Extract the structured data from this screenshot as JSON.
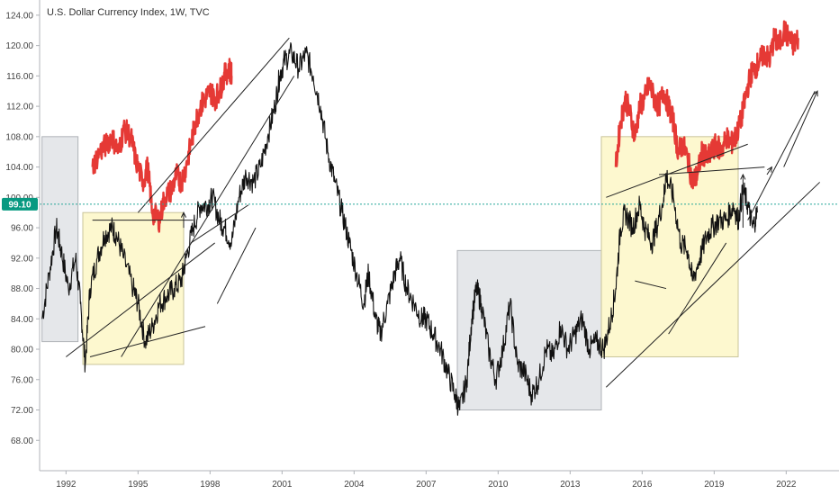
{
  "chart_data": {
    "type": "line",
    "title": "U.S. Dollar Currency Index, 1W, TVC",
    "xlabel": "",
    "ylabel": "",
    "ylim": [
      64,
      126
    ],
    "xlim": [
      1990.9,
      2024.2
    ],
    "yticks": [
      "124.00",
      "120.00",
      "116.00",
      "112.00",
      "108.00",
      "104.00",
      "100.00",
      "96.00",
      "92.00",
      "88.00",
      "84.00",
      "80.00",
      "76.00",
      "72.00",
      "68.00"
    ],
    "ytick_values": [
      124,
      120,
      116,
      112,
      108,
      104,
      100,
      96,
      92,
      88,
      84,
      80,
      76,
      72,
      68
    ],
    "xticks": [
      "1992",
      "1995",
      "1998",
      "2001",
      "2004",
      "2007",
      "2010",
      "2013",
      "2016",
      "2019",
      "2022"
    ],
    "xtick_values": [
      1992,
      1995,
      1998,
      2001,
      2004,
      2007,
      2010,
      2013,
      2016,
      2019,
      2022
    ],
    "current_price": {
      "label": "99.10",
      "value": 99.1,
      "color": "#089981"
    },
    "series": [
      {
        "color": "#111111",
        "anchors": [
          [
            1991.0,
            84
          ],
          [
            1991.3,
            90
          ],
          [
            1991.6,
            96
          ],
          [
            1991.8,
            93
          ],
          [
            1992.1,
            88
          ],
          [
            1992.4,
            92
          ],
          [
            1992.6,
            86
          ],
          [
            1992.8,
            78
          ],
          [
            1993.0,
            88
          ],
          [
            1993.3,
            92
          ],
          [
            1993.6,
            95
          ],
          [
            1993.9,
            96
          ],
          [
            1994.1,
            95
          ],
          [
            1994.4,
            92
          ],
          [
            1994.8,
            88
          ],
          [
            1995.0,
            86
          ],
          [
            1995.3,
            81
          ],
          [
            1995.6,
            83
          ],
          [
            1995.9,
            86
          ],
          [
            1996.2,
            87
          ],
          [
            1996.5,
            88
          ],
          [
            1996.8,
            89
          ],
          [
            1997.0,
            92
          ],
          [
            1997.3,
            96
          ],
          [
            1997.6,
            99
          ],
          [
            1997.9,
            99
          ],
          [
            1998.1,
            100
          ],
          [
            1998.4,
            97
          ],
          [
            1998.6,
            96
          ],
          [
            1998.9,
            94
          ],
          [
            1999.2,
            100
          ],
          [
            1999.5,
            103
          ],
          [
            1999.8,
            102
          ],
          [
            2000.1,
            104
          ],
          [
            2000.4,
            108
          ],
          [
            2000.7,
            112
          ],
          [
            2000.9,
            116
          ],
          [
            2001.1,
            118
          ],
          [
            2001.4,
            119
          ],
          [
            2001.7,
            117
          ],
          [
            2002.0,
            119
          ],
          [
            2002.3,
            116
          ],
          [
            2002.6,
            112
          ],
          [
            2002.9,
            106
          ],
          [
            2003.2,
            102
          ],
          [
            2003.5,
            98
          ],
          [
            2003.8,
            94
          ],
          [
            2004.1,
            90
          ],
          [
            2004.4,
            86
          ],
          [
            2004.6,
            90
          ],
          [
            2004.9,
            84
          ],
          [
            2005.1,
            82
          ],
          [
            2005.4,
            86
          ],
          [
            2005.7,
            90
          ],
          [
            2005.9,
            92
          ],
          [
            2006.2,
            88
          ],
          [
            2006.5,
            86
          ],
          [
            2006.8,
            84
          ],
          [
            2007.0,
            84
          ],
          [
            2007.3,
            82
          ],
          [
            2007.6,
            80
          ],
          [
            2007.9,
            77
          ],
          [
            2008.2,
            74
          ],
          [
            2008.4,
            72
          ],
          [
            2008.7,
            76
          ],
          [
            2008.9,
            84
          ],
          [
            2009.1,
            88
          ],
          [
            2009.3,
            86
          ],
          [
            2009.6,
            80
          ],
          [
            2009.9,
            76
          ],
          [
            2010.2,
            80
          ],
          [
            2010.5,
            86
          ],
          [
            2010.8,
            78
          ],
          [
            2011.1,
            77
          ],
          [
            2011.4,
            74
          ],
          [
            2011.7,
            76
          ],
          [
            2012.0,
            80
          ],
          [
            2012.3,
            79
          ],
          [
            2012.6,
            83
          ],
          [
            2012.9,
            80
          ],
          [
            2013.2,
            82
          ],
          [
            2013.5,
            84
          ],
          [
            2013.8,
            80
          ],
          [
            2014.1,
            81
          ],
          [
            2014.4,
            80
          ],
          [
            2014.7,
            84
          ],
          [
            2014.9,
            88
          ],
          [
            2015.1,
            96
          ],
          [
            2015.3,
            98
          ],
          [
            2015.6,
            96
          ],
          [
            2015.9,
            99
          ],
          [
            2016.1,
            96
          ],
          [
            2016.4,
            94
          ],
          [
            2016.6,
            96
          ],
          [
            2016.9,
            100
          ],
          [
            2017.0,
            103
          ],
          [
            2017.3,
            100
          ],
          [
            2017.6,
            94
          ],
          [
            2017.9,
            93
          ],
          [
            2018.1,
            89
          ],
          [
            2018.4,
            92
          ],
          [
            2018.7,
            95
          ],
          [
            2018.9,
            96
          ],
          [
            2019.2,
            97
          ],
          [
            2019.5,
            97
          ],
          [
            2019.8,
            99
          ],
          [
            2020.0,
            97
          ],
          [
            2020.2,
            101
          ],
          [
            2020.4,
            99
          ],
          [
            2020.6,
            96
          ],
          [
            2020.8,
            98
          ]
        ]
      },
      {
        "color": "#e53935",
        "anchors": [
          [
            1993.1,
            104
          ],
          [
            1993.4,
            106
          ],
          [
            1993.7,
            107
          ],
          [
            1993.9,
            108
          ],
          [
            1994.2,
            106
          ],
          [
            1994.4,
            109
          ],
          [
            1994.7,
            108
          ],
          [
            1994.9,
            105
          ],
          [
            1995.2,
            102
          ],
          [
            1995.4,
            104
          ],
          [
            1995.6,
            98
          ],
          [
            1995.9,
            97
          ],
          [
            1996.1,
            100
          ],
          [
            1996.4,
            101
          ],
          [
            1996.6,
            103
          ],
          [
            1996.8,
            102
          ],
          [
            1997.0,
            104
          ],
          [
            1997.2,
            107
          ],
          [
            1997.4,
            110
          ],
          [
            1997.6,
            112
          ],
          [
            1997.8,
            113
          ],
          [
            1998.0,
            114
          ],
          [
            1998.2,
            113
          ],
          [
            1998.4,
            114
          ],
          [
            1998.6,
            116
          ],
          [
            1998.8,
            117
          ],
          [
            1998.9,
            116
          ],
          [
            2014.9,
            104
          ],
          [
            2015.1,
            110
          ],
          [
            2015.3,
            113
          ],
          [
            2015.5,
            111
          ],
          [
            2015.7,
            108
          ],
          [
            2015.9,
            112
          ],
          [
            2016.1,
            113
          ],
          [
            2016.3,
            115
          ],
          [
            2016.5,
            113
          ],
          [
            2016.7,
            112
          ],
          [
            2016.9,
            114
          ],
          [
            2017.1,
            112
          ],
          [
            2017.3,
            110
          ],
          [
            2017.5,
            106
          ],
          [
            2017.7,
            107
          ],
          [
            2017.9,
            105
          ],
          [
            2018.1,
            102
          ],
          [
            2018.3,
            103
          ],
          [
            2018.5,
            106
          ],
          [
            2018.7,
            105
          ],
          [
            2018.9,
            106
          ],
          [
            2019.1,
            107
          ],
          [
            2019.3,
            106
          ],
          [
            2019.5,
            108
          ],
          [
            2019.7,
            107
          ],
          [
            2019.9,
            108
          ],
          [
            2020.1,
            110
          ],
          [
            2020.3,
            113
          ],
          [
            2020.5,
            116
          ],
          [
            2020.7,
            117
          ],
          [
            2020.9,
            118
          ],
          [
            2021.1,
            119
          ],
          [
            2021.3,
            118
          ],
          [
            2021.5,
            121
          ],
          [
            2021.7,
            120
          ],
          [
            2021.9,
            122
          ],
          [
            2022.1,
            121
          ],
          [
            2022.3,
            120
          ],
          [
            2022.5,
            121
          ]
        ]
      }
    ],
    "zones": [
      {
        "x": [
          1991.0,
          1992.5
        ],
        "y": [
          81,
          108
        ],
        "fill": "#e5e7ea",
        "border": "#b0b3b8"
      },
      {
        "x": [
          1992.7,
          1996.9
        ],
        "y": [
          78,
          98
        ],
        "fill": "#fdf8cf",
        "border": "#c9c49a"
      },
      {
        "x": [
          2008.3,
          2014.3
        ],
        "y": [
          72,
          93
        ],
        "fill": "#e5e7ea",
        "border": "#b0b3b8"
      },
      {
        "x": [
          2014.3,
          2020.0
        ],
        "y": [
          79,
          108
        ],
        "fill": "#fdf8cf",
        "border": "#c9c49a"
      }
    ],
    "trendlines": [
      {
        "from": [
          1992.0,
          79
        ],
        "to": [
          1998.2,
          94
        ]
      },
      {
        "from": [
          1993.0,
          79
        ],
        "to": [
          1997.8,
          83
        ]
      },
      {
        "from": [
          1994.3,
          79
        ],
        "to": [
          2001.5,
          116
        ]
      },
      {
        "from": [
          1997.2,
          94
        ],
        "to": [
          1999.6,
          99
        ]
      },
      {
        "from": [
          1998.3,
          86
        ],
        "to": [
          1999.9,
          96
        ]
      },
      {
        "from": [
          1993.1,
          97
        ],
        "to": [
          1997.3,
          97
        ]
      },
      {
        "from": [
          1995.0,
          98
        ],
        "to": [
          2001.3,
          121
        ]
      },
      {
        "from": [
          2014.5,
          75
        ],
        "to": [
          2023.4,
          102
        ]
      },
      {
        "from": [
          2017.1,
          82
        ],
        "to": [
          2019.5,
          94
        ]
      },
      {
        "from": [
          2015.7,
          89
        ],
        "to": [
          2017.0,
          88
        ]
      },
      {
        "from": [
          2014.5,
          100
        ],
        "to": [
          2020.4,
          107
        ]
      },
      {
        "from": [
          2016.7,
          103
        ],
        "to": [
          2021.1,
          104
        ]
      },
      {
        "from": [
          2020.4,
          97
        ],
        "to": [
          2023.2,
          114
        ]
      }
    ],
    "arrows": [
      {
        "from": [
          2020.2,
          96
        ],
        "to": [
          2020.2,
          103
        ]
      },
      {
        "from": [
          2021.2,
          103
        ],
        "to": [
          2021.4,
          104
        ]
      },
      {
        "from": [
          2021.9,
          104
        ],
        "to": [
          2023.3,
          114
        ]
      },
      {
        "from": [
          1996.9,
          96
        ],
        "to": [
          1996.9,
          98
        ]
      }
    ]
  }
}
